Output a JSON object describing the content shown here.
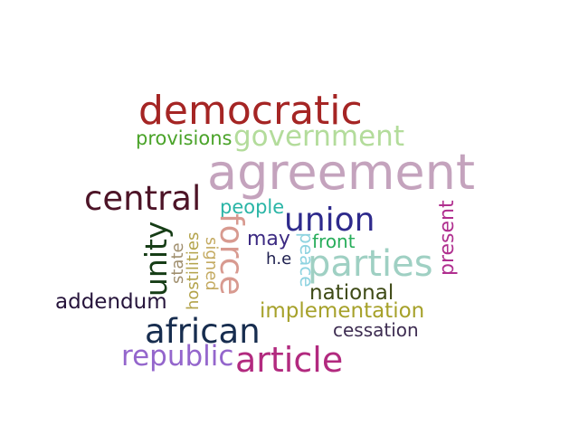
{
  "words": {
    "agreement": {
      "text": "agreement",
      "color": "#c4a3bd"
    },
    "democratic": {
      "text": "democratic",
      "color": "#a52524"
    },
    "government": {
      "text": "government",
      "color": "#b3dc9b"
    },
    "provisions": {
      "text": "provisions",
      "color": "#4aa329"
    },
    "central": {
      "text": "central",
      "color": "#4d1427"
    },
    "people": {
      "text": "people",
      "color": "#2ab5a6"
    },
    "union": {
      "text": "union",
      "color": "#2e2a8c"
    },
    "present": {
      "text": "present",
      "color": "#b02f8f"
    },
    "unity": {
      "text": "unity",
      "color": "#163d16"
    },
    "state": {
      "text": "state",
      "color": "#a08f6e"
    },
    "hostilities": {
      "text": "hostilities",
      "color": "#b3a34a"
    },
    "signed": {
      "text": "signed",
      "color": "#c4aa61"
    },
    "force": {
      "text": "force",
      "color": "#d89a90"
    },
    "may": {
      "text": "may",
      "color": "#3c2a82"
    },
    "peace": {
      "text": "peace",
      "color": "#8ed3e0"
    },
    "front": {
      "text": "front",
      "color": "#27ad5a"
    },
    "parties": {
      "text": "parties",
      "color": "#9fd0c3"
    },
    "he": {
      "text": "h.e",
      "color": "#1e1f4f"
    },
    "national": {
      "text": "national",
      "color": "#3e4a16"
    },
    "addendum": {
      "text": "addendum",
      "color": "#26143b"
    },
    "implementation": {
      "text": "implementation",
      "color": "#a6a12a"
    },
    "african": {
      "text": "african",
      "color": "#172d4f"
    },
    "cessation": {
      "text": "cessation",
      "color": "#3e2d52"
    },
    "republic": {
      "text": "republic",
      "color": "#9466cc"
    },
    "article": {
      "text": "article",
      "color": "#b22a7f"
    }
  }
}
